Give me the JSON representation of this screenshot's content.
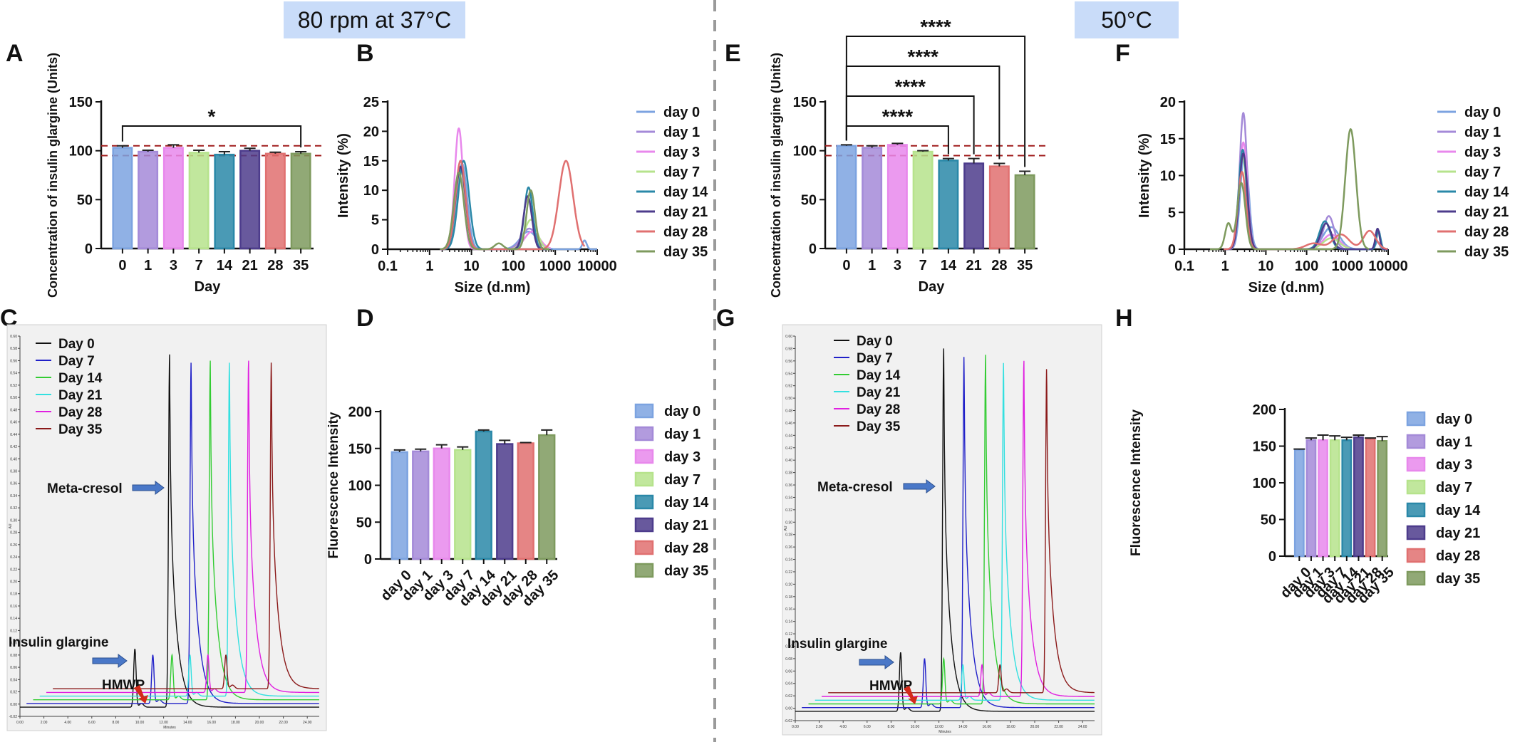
{
  "headers": {
    "left": "80 rpm at 37°C",
    "right": "50°C"
  },
  "panel_labels": [
    "A",
    "B",
    "C",
    "D",
    "E",
    "F",
    "G",
    "H"
  ],
  "colors": {
    "day 0": "#7ca3e0",
    "day 1": "#a48ad8",
    "day 3": "#e888ec",
    "day 7": "#b6e38c",
    "day 14": "#2a88a8",
    "day 21": "#4d3c8c",
    "day 28": "#e07070",
    "day 35": "#7e9a5e",
    "ref_line": "#a01c1c",
    "hplc": [
      "#111111",
      "#2020c8",
      "#33cc33",
      "#33e0e0",
      "#e020e0",
      "#8b1a1a"
    ]
  },
  "legend_days": [
    "day 0",
    "day 1",
    "day 3",
    "day 7",
    "day 14",
    "day 21",
    "day 28",
    "day 35"
  ],
  "chart_data": [
    {
      "id": "A",
      "type": "bar",
      "xlabel": "Day",
      "ylabel": "Concentration of insulin glargine (Units)",
      "categories": [
        "0",
        "1",
        "3",
        "7",
        "14",
        "21",
        "28",
        "35"
      ],
      "values": [
        103,
        99,
        103,
        98,
        96,
        100,
        97,
        97
      ],
      "errors": [
        2,
        1.5,
        3,
        2.5,
        3,
        2.5,
        1.5,
        2
      ],
      "ylim": [
        0,
        150
      ],
      "yticks": [
        "0",
        "50",
        "100",
        "150"
      ],
      "ref_lines": [
        105,
        95
      ],
      "significance": [
        {
          "from": "0",
          "to": "35",
          "label": "*"
        }
      ]
    },
    {
      "id": "B",
      "type": "line",
      "xlabel": "Size (d.nm)",
      "ylabel": "Intensity (%)",
      "xscale": "log",
      "xticks": [
        "0.1",
        "1",
        "10",
        "100",
        "1000",
        "10000"
      ],
      "ylim": [
        0,
        25
      ],
      "yticks": [
        "0",
        "5",
        "10",
        "15",
        "20",
        "25"
      ],
      "legend": "right",
      "series": [
        {
          "name": "day 0",
          "peaks": [
            [
              6,
              14.5,
              0.12
            ],
            [
              230,
              3,
              0.2
            ],
            [
              5000,
              1.5,
              0.05
            ]
          ]
        },
        {
          "name": "day 1",
          "peaks": [
            [
              5.5,
              15,
              0.12
            ],
            [
              240,
              3.5,
              0.18
            ]
          ]
        },
        {
          "name": "day 3",
          "peaks": [
            [
              5,
              20.5,
              0.1
            ],
            [
              280,
              3,
              0.18
            ]
          ]
        },
        {
          "name": "day 7",
          "peaks": [
            [
              5.5,
              13.5,
              0.12
            ],
            [
              260,
              5,
              0.15
            ]
          ]
        },
        {
          "name": "day 14",
          "peaks": [
            [
              6.5,
              15,
              0.13
            ],
            [
              230,
              10.5,
              0.1
            ]
          ]
        },
        {
          "name": "day 21",
          "peaks": [
            [
              5.5,
              14,
              0.12
            ],
            [
              220,
              9,
              0.1
            ]
          ]
        },
        {
          "name": "day 28",
          "peaks": [
            [
              5.5,
              15,
              0.12
            ],
            [
              1800,
              15,
              0.17
            ]
          ]
        },
        {
          "name": "day 35",
          "peaks": [
            [
              5,
              13,
              0.12
            ],
            [
              45,
              1,
              0.1
            ],
            [
              260,
              10,
              0.1
            ]
          ]
        }
      ]
    },
    {
      "id": "C",
      "type": "line",
      "legend": [
        "Day 0",
        "Day 7",
        "Day 14",
        "Day 21",
        "Day 28",
        "Day 35"
      ],
      "annotations": [
        "Meta-cresol",
        "Insulin glargine",
        "HMWP"
      ],
      "xaxis_label": "Minutes",
      "yaxis_label": "AU",
      "xticks": [
        "0.00",
        "2.00",
        "4.00",
        "6.00",
        "8.00",
        "10.00",
        "12.00",
        "14.00",
        "16.00",
        "18.00",
        "20.00",
        "22.00",
        "24.00"
      ],
      "yticks": [
        "-0.02",
        "0.00",
        "0.02",
        "0.04",
        "0.06",
        "0.08",
        "0.10",
        "0.12",
        "0.14",
        "0.16",
        "0.18",
        "0.20",
        "0.22",
        "0.24",
        "0.26",
        "0.28",
        "0.30",
        "0.32",
        "0.34",
        "0.36",
        "0.38",
        "0.40",
        "0.42",
        "0.44",
        "0.46",
        "0.48",
        "0.50",
        "0.52",
        "0.54",
        "0.56",
        "0.58",
        "0.60"
      ],
      "series": [
        {
          "name": "Day 0",
          "insulin_peak": [
            9.6,
            0.09
          ],
          "cresol_peak": [
            12.5,
            0.57
          ]
        },
        {
          "name": "Day 7",
          "insulin_peak": [
            11.1,
            0.08
          ],
          "cresol_peak": [
            14.3,
            0.56
          ]
        },
        {
          "name": "Day 14",
          "insulin_peak": [
            12.7,
            0.08
          ],
          "cresol_peak": [
            15.9,
            0.56
          ]
        },
        {
          "name": "Day 21",
          "insulin_peak": [
            14.2,
            0.08
          ],
          "cresol_peak": [
            17.5,
            0.56
          ]
        },
        {
          "name": "Day 28",
          "insulin_peak": [
            15.7,
            0.08
          ],
          "cresol_peak": [
            19.1,
            0.56
          ]
        },
        {
          "name": "Day 35",
          "insulin_peak": [
            17.2,
            0.08
          ],
          "cresol_peak": [
            21.0,
            0.56
          ]
        }
      ]
    },
    {
      "id": "D",
      "type": "bar",
      "ylabel": "Fluorescence Intensity",
      "categories": [
        "day 0",
        "day 1",
        "day 3",
        "day 7",
        "day 14",
        "day 21",
        "day 28",
        "day 35"
      ],
      "values": [
        145,
        146,
        150,
        148,
        173,
        156,
        157,
        168
      ],
      "errors": [
        3,
        3,
        5,
        4,
        2,
        5,
        1,
        7
      ],
      "ylim": [
        0,
        200
      ],
      "yticks": [
        "0",
        "50",
        "100",
        "150",
        "200"
      ],
      "legend": "right"
    },
    {
      "id": "E",
      "type": "bar",
      "xlabel": "Day",
      "ylabel": "Concentration of insulin glargine (Units)",
      "categories": [
        "0",
        "1",
        "3",
        "7",
        "14",
        "21",
        "28",
        "35"
      ],
      "values": [
        105,
        103,
        106,
        99,
        90,
        87,
        84,
        75
      ],
      "errors": [
        1,
        2,
        1.5,
        1,
        2,
        5,
        3,
        4
      ],
      "ylim": [
        0,
        150
      ],
      "yticks": [
        "0",
        "50",
        "100",
        "150"
      ],
      "ref_lines": [
        105,
        95
      ],
      "significance": [
        {
          "from": "0",
          "to": "14",
          "label": "****"
        },
        {
          "from": "0",
          "to": "21",
          "label": "****"
        },
        {
          "from": "0",
          "to": "28",
          "label": "****"
        },
        {
          "from": "0",
          "to": "35",
          "label": "****"
        }
      ]
    },
    {
      "id": "F",
      "type": "line",
      "xlabel": "Size (d.nm)",
      "ylabel": "Intensity (%)",
      "xscale": "log",
      "xticks": [
        "0.1",
        "1",
        "10",
        "100",
        "1000",
        "10000"
      ],
      "ylim": [
        0,
        20
      ],
      "yticks": [
        "0",
        "5",
        "10",
        "15",
        "20"
      ],
      "legend": "right",
      "series": [
        {
          "name": "day 0",
          "peaks": [
            [
              3,
              13.5,
              0.1
            ],
            [
              400,
              3,
              0.2
            ],
            [
              5500,
              1,
              0.05
            ]
          ]
        },
        {
          "name": "day 1",
          "peaks": [
            [
              2.8,
              18.5,
              0.09
            ],
            [
              350,
              4.5,
              0.13
            ]
          ]
        },
        {
          "name": "day 3",
          "peaks": [
            [
              2.8,
              14.5,
              0.1
            ],
            [
              400,
              2,
              0.2
            ]
          ]
        },
        {
          "name": "day 7",
          "peaks": [
            [
              2.7,
              12.5,
              0.1
            ],
            [
              400,
              1.5,
              0.2
            ]
          ]
        },
        {
          "name": "day 14",
          "peaks": [
            [
              2.7,
              13.5,
              0.1
            ],
            [
              280,
              3.8,
              0.13
            ],
            [
              5800,
              2.5,
              0.05
            ]
          ]
        },
        {
          "name": "day 21",
          "peaks": [
            [
              2.8,
              13,
              0.1
            ],
            [
              300,
              3.5,
              0.13
            ],
            [
              5500,
              2.8,
              0.05
            ]
          ]
        },
        {
          "name": "day 28",
          "peaks": [
            [
              2.6,
              10.5,
              0.1
            ],
            [
              150,
              0.8,
              0.2
            ],
            [
              700,
              2,
              0.2
            ],
            [
              3500,
              2.5,
              0.15
            ]
          ]
        },
        {
          "name": "day 35",
          "peaks": [
            [
              1.2,
              3.5,
              0.08
            ],
            [
              2.5,
              9,
              0.1
            ],
            [
              1200,
              16.3,
              0.13
            ]
          ]
        }
      ]
    },
    {
      "id": "G",
      "type": "line",
      "legend": [
        "Day 0",
        "Day 7",
        "Day 14",
        "Day 21",
        "Day 28",
        "Day 35"
      ],
      "annotations": [
        "Meta-cresol",
        "Insulin glargine",
        "HMWP"
      ],
      "xaxis_label": "Minutes",
      "yaxis_label": "AU",
      "xticks": [
        "0.00",
        "2.00",
        "4.00",
        "6.00",
        "8.00",
        "10.00",
        "12.00",
        "14.00",
        "16.00",
        "18.00",
        "20.00",
        "22.00",
        "24.00"
      ],
      "yticks": [
        "-0.02",
        "0.00",
        "0.02",
        "0.04",
        "0.06",
        "0.08",
        "0.10",
        "0.12",
        "0.14",
        "0.16",
        "0.18",
        "0.20",
        "0.22",
        "0.24",
        "0.26",
        "0.28",
        "0.30",
        "0.32",
        "0.34",
        "0.36",
        "0.38",
        "0.40",
        "0.42",
        "0.44",
        "0.46",
        "0.48",
        "0.50",
        "0.52",
        "0.54",
        "0.56",
        "0.58",
        "0.60"
      ],
      "series": [
        {
          "name": "Day 0",
          "insulin_peak": [
            8.8,
            0.09
          ],
          "cresol_peak": [
            12.4,
            0.58
          ]
        },
        {
          "name": "Day 7",
          "insulin_peak": [
            10.8,
            0.08
          ],
          "cresol_peak": [
            14.1,
            0.57
          ]
        },
        {
          "name": "Day 14",
          "insulin_peak": [
            12.4,
            0.08
          ],
          "cresol_peak": [
            15.9,
            0.57
          ]
        },
        {
          "name": "Day 21",
          "insulin_peak": [
            14.0,
            0.07
          ],
          "cresol_peak": [
            17.4,
            0.56
          ]
        },
        {
          "name": "Day 28",
          "insulin_peak": [
            15.6,
            0.07
          ],
          "cresol_peak": [
            19.1,
            0.56
          ]
        },
        {
          "name": "Day 35",
          "insulin_peak": [
            17.1,
            0.07
          ],
          "cresol_peak": [
            21.0,
            0.55
          ]
        }
      ]
    },
    {
      "id": "H",
      "type": "bar",
      "ylabel": "Fluorescence Intensity",
      "categories": [
        "day 0",
        "day 1",
        "day 3",
        "day 7",
        "day 14",
        "day 21",
        "day 28",
        "day 35"
      ],
      "values": [
        145,
        158,
        158,
        158,
        158,
        162,
        160,
        157
      ],
      "errors": [
        1,
        3,
        7,
        6,
        4,
        3,
        1,
        6
      ],
      "ylim": [
        0,
        200
      ],
      "yticks": [
        "0",
        "50",
        "100",
        "150",
        "200"
      ],
      "legend": "right"
    }
  ]
}
